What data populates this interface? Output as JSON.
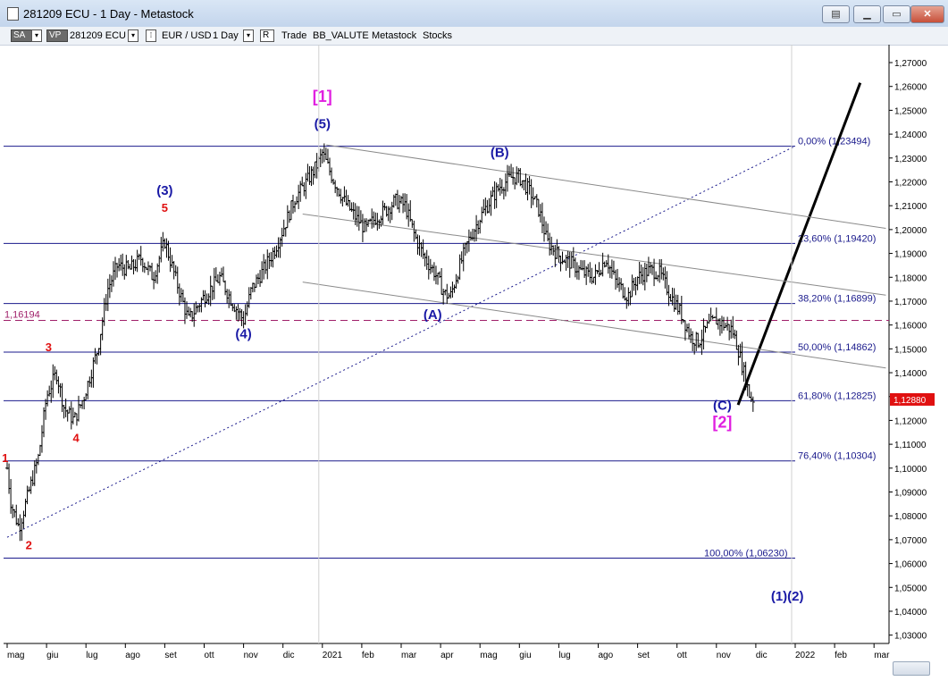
{
  "window": {
    "title": "281209 ECU - 1 Day - Metastock"
  },
  "toolbar": {
    "sa_label": "SA",
    "vp_label": "VP",
    "security": "281209 ECU",
    "symbol": "EUR / USD",
    "period": "1 Day",
    "r_label": "R",
    "items": [
      "Trade",
      "BB_VALUTE",
      "Metastock",
      "Stocks"
    ]
  },
  "colors": {
    "wave_blue": "#1a1aa6",
    "wave_red": "#e01010",
    "wave_magenta": "#e020e0",
    "level_line": "#1a1a8c",
    "channel": "#8a8a8a",
    "price_bar": "#000000",
    "dashed_level": "#a0206a",
    "last_price_box": "#e01010"
  },
  "chart_data": {
    "type": "bar",
    "y_axis": {
      "range": [
        1.03,
        1.27
      ],
      "ticks": [
        "1,03000",
        "1,04000",
        "1,05000",
        "1,06000",
        "1,07000",
        "1,08000",
        "1,09000",
        "1,10000",
        "1,11000",
        "1,12000",
        "1,13000",
        "1,14000",
        "1,15000",
        "1,16000",
        "1,17000",
        "1,18000",
        "1,19000",
        "1,20000",
        "1,21000",
        "1,22000",
        "1,23000",
        "1,24000",
        "1,25000",
        "1,26000",
        "1,27000"
      ],
      "tick_values": [
        1.03,
        1.04,
        1.05,
        1.06,
        1.07,
        1.08,
        1.09,
        1.1,
        1.11,
        1.12,
        1.13,
        1.14,
        1.15,
        1.16,
        1.17,
        1.18,
        1.19,
        1.2,
        1.21,
        1.22,
        1.23,
        1.24,
        1.25,
        1.26,
        1.27
      ]
    },
    "x_axis": {
      "labels": [
        "mag",
        "giu",
        "lug",
        "ago",
        "set",
        "ott",
        "nov",
        "dic",
        "2021",
        "feb",
        "mar",
        "apr",
        "mag",
        "giu",
        "lug",
        "ago",
        "set",
        "ott",
        "nov",
        "dic",
        "2022",
        "feb",
        "mar"
      ],
      "month_index": [
        0,
        1,
        2,
        3,
        4,
        5,
        6,
        7,
        8,
        9,
        10,
        11,
        12,
        13,
        14,
        15,
        16,
        17,
        18,
        19,
        20,
        21,
        22
      ]
    },
    "fib_levels": [
      {
        "label": "0,00% (1,23494)",
        "value": 1.23494
      },
      {
        "label": "23,60% (1,19420)",
        "value": 1.1942
      },
      {
        "label": "38,20% (1,16899)",
        "value": 1.16899
      },
      {
        "label": "50,00% (1,14862)",
        "value": 1.14862
      },
      {
        "label": "61,80% (1,12825)",
        "value": 1.12825
      },
      {
        "label": "76,40% (1,10304)",
        "value": 1.10304
      },
      {
        "label": "100,00% (1,06230)",
        "value": 1.0623
      }
    ],
    "dashed_level": {
      "label": "1,16194",
      "value": 1.16194
    },
    "last_price": {
      "label": "1,12880",
      "value": 1.1288
    },
    "price_path": [
      [
        0.0,
        1.1
      ],
      [
        0.1,
        1.085
      ],
      [
        0.3,
        1.075
      ],
      [
        0.55,
        1.09
      ],
      [
        0.8,
        1.105
      ],
      [
        1.0,
        1.13
      ],
      [
        1.25,
        1.14
      ],
      [
        1.45,
        1.125
      ],
      [
        1.7,
        1.12
      ],
      [
        1.95,
        1.13
      ],
      [
        2.3,
        1.15
      ],
      [
        2.55,
        1.175
      ],
      [
        2.8,
        1.185
      ],
      [
        3.1,
        1.183
      ],
      [
        3.4,
        1.188
      ],
      [
        3.7,
        1.18
      ],
      [
        4.0,
        1.195
      ],
      [
        4.3,
        1.178
      ],
      [
        4.6,
        1.162
      ],
      [
        5.0,
        1.172
      ],
      [
        5.4,
        1.18
      ],
      [
        5.7,
        1.17
      ],
      [
        6.0,
        1.162
      ],
      [
        6.2,
        1.175
      ],
      [
        6.5,
        1.183
      ],
      [
        6.8,
        1.192
      ],
      [
        7.0,
        1.2
      ],
      [
        7.3,
        1.213
      ],
      [
        7.6,
        1.22
      ],
      [
        7.9,
        1.228
      ],
      [
        8.0,
        1.232
      ],
      [
        8.25,
        1.222
      ],
      [
        8.55,
        1.212
      ],
      [
        8.85,
        1.205
      ],
      [
        9.1,
        1.2
      ],
      [
        9.35,
        1.205
      ],
      [
        9.6,
        1.208
      ],
      [
        9.85,
        1.212
      ],
      [
        10.1,
        1.21
      ],
      [
        10.35,
        1.197
      ],
      [
        10.6,
        1.188
      ],
      [
        10.85,
        1.182
      ],
      [
        11.1,
        1.173
      ],
      [
        11.25,
        1.172
      ],
      [
        11.45,
        1.183
      ],
      [
        11.7,
        1.195
      ],
      [
        12.0,
        1.205
      ],
      [
        12.25,
        1.212
      ],
      [
        12.5,
        1.218
      ],
      [
        12.8,
        1.222
      ],
      [
        13.0,
        1.222
      ],
      [
        13.3,
        1.215
      ],
      [
        13.5,
        1.208
      ],
      [
        13.7,
        1.195
      ],
      [
        14.0,
        1.189
      ],
      [
        14.3,
        1.186
      ],
      [
        14.6,
        1.182
      ],
      [
        14.9,
        1.18
      ],
      [
        15.2,
        1.188
      ],
      [
        15.45,
        1.178
      ],
      [
        15.75,
        1.172
      ],
      [
        16.0,
        1.18
      ],
      [
        16.3,
        1.183
      ],
      [
        16.55,
        1.182
      ],
      [
        16.85,
        1.172
      ],
      [
        17.1,
        1.165
      ],
      [
        17.35,
        1.155
      ],
      [
        17.55,
        1.153
      ],
      [
        17.8,
        1.16
      ],
      [
        18.0,
        1.162
      ],
      [
        18.2,
        1.16
      ],
      [
        18.4,
        1.158
      ],
      [
        18.55,
        1.15
      ],
      [
        18.7,
        1.14
      ],
      [
        18.85,
        1.13
      ],
      [
        18.95,
        1.1288
      ]
    ],
    "wave_labels": [
      {
        "text": "1",
        "x": -0.05,
        "y": 1.1025,
        "color": "red",
        "size": "small"
      },
      {
        "text": "2",
        "x": 0.55,
        "y": 1.066,
        "color": "red",
        "size": "small"
      },
      {
        "text": "3",
        "x": 1.05,
        "y": 1.149,
        "color": "red",
        "size": "small"
      },
      {
        "text": "4",
        "x": 1.75,
        "y": 1.111,
        "color": "red",
        "size": "small"
      },
      {
        "text": "5",
        "x": 4.0,
        "y": 1.2075,
        "color": "red",
        "size": "small"
      },
      {
        "text": "(3)",
        "x": 4.0,
        "y": 1.2145,
        "color": "blue",
        "size": "medium"
      },
      {
        "text": "(4)",
        "x": 6.0,
        "y": 1.1545,
        "color": "blue",
        "size": "medium"
      },
      {
        "text": "(5)",
        "x": 8.0,
        "y": 1.2425,
        "color": "blue",
        "size": "medium"
      },
      {
        "text": "[1]",
        "x": 8.0,
        "y": 1.2535,
        "color": "magenta",
        "size": "large"
      },
      {
        "text": "(A)",
        "x": 10.8,
        "y": 1.1625,
        "color": "blue",
        "size": "medium"
      },
      {
        "text": "(B)",
        "x": 12.5,
        "y": 1.2305,
        "color": "blue",
        "size": "medium"
      },
      {
        "text": "(C)",
        "x": 18.15,
        "y": 1.1245,
        "color": "blue",
        "size": "medium"
      },
      {
        "text": "[2]",
        "x": 18.15,
        "y": 1.117,
        "color": "magenta",
        "size": "large"
      },
      {
        "text": "(1)(2)",
        "x": 19.8,
        "y": 1.0445,
        "color": "blue",
        "size": "medium"
      }
    ],
    "trend_lines": [
      {
        "name": "dotted-trendline",
        "style": "dotted",
        "from": [
          0.0,
          1.071
        ],
        "to": [
          20.0,
          1.235
        ]
      },
      {
        "name": "projection-arrow",
        "style": "bold",
        "from": [
          18.55,
          1.1265
        ],
        "to": [
          21.65,
          1.2615
        ]
      },
      {
        "name": "channel-upper",
        "style": "thin",
        "from": [
          8.1,
          1.2355
        ],
        "to": [
          22.3,
          1.2005
        ]
      },
      {
        "name": "channel-middle",
        "style": "thin",
        "from": [
          7.5,
          1.2065
        ],
        "to": [
          22.3,
          1.1725
        ]
      },
      {
        "name": "channel-lower",
        "style": "thin",
        "from": [
          7.5,
          1.178
        ],
        "to": [
          22.3,
          1.142
        ]
      }
    ]
  }
}
